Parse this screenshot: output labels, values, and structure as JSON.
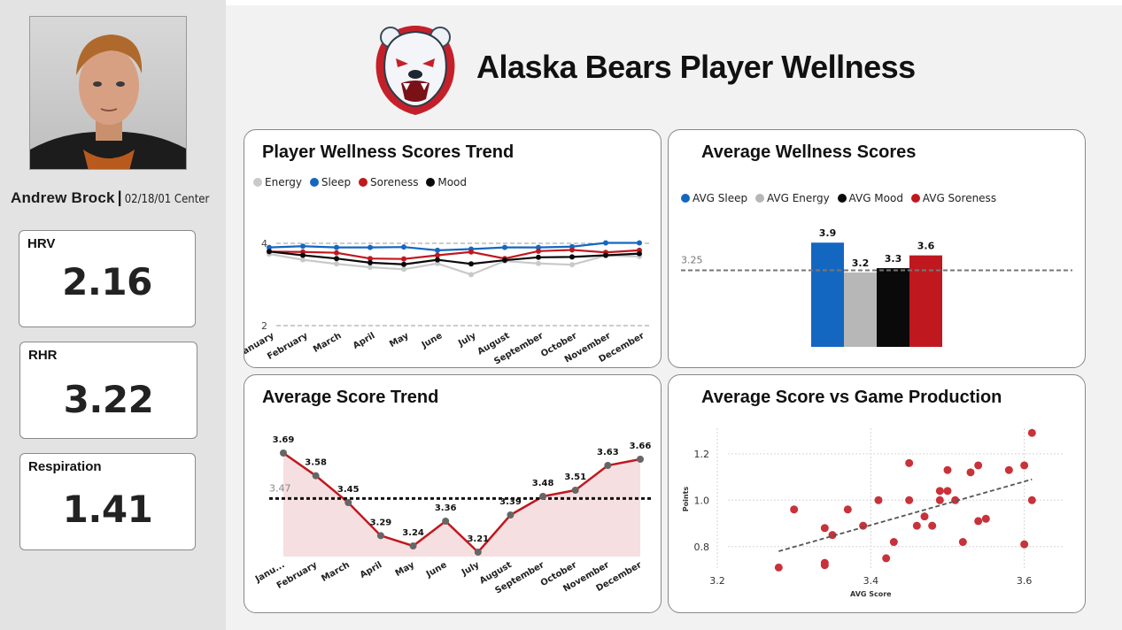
{
  "header": {
    "title": "Alaska Bears Player Wellness",
    "logo": "bear-head-logo"
  },
  "player": {
    "name": "Andrew Brock",
    "separator": "|",
    "details": "02/18/01 Center",
    "photo": "player-photo"
  },
  "stats": [
    {
      "label": "HRV",
      "value": "2.16"
    },
    {
      "label": "RHR",
      "value": "3.22"
    },
    {
      "label": "Respiration",
      "value": "1.41"
    }
  ],
  "colors": {
    "sleep": "#1467c1",
    "energy": "#c9c9c9",
    "soreness": "#c0181f",
    "mood": "#0a0a0a",
    "bar_energy": "#b7b7b7",
    "trend_line": "#c0181f",
    "trend_fill": "#f6dfe1",
    "scatter": "#c8323a"
  },
  "panels": {
    "wellness_trend": {
      "title": "Player Wellness Scores Trend"
    },
    "avg_wellness": {
      "title": "Average Wellness Scores"
    },
    "avg_trend": {
      "title": "Average Score Trend"
    },
    "scatter": {
      "title": "Average Score vs Game Production"
    }
  },
  "chart_data": [
    {
      "id": "wellness_trend",
      "type": "line",
      "title": "Player Wellness Scores Trend",
      "categories": [
        "January",
        "February",
        "March",
        "April",
        "May",
        "June",
        "July",
        "August",
        "September",
        "October",
        "November",
        "December"
      ],
      "ylim": [
        2,
        4
      ],
      "yticks": [
        "2",
        "4"
      ],
      "series": [
        {
          "name": "Energy",
          "color": "#c9c9c9",
          "values": [
            3.74,
            3.6,
            3.5,
            3.42,
            3.37,
            3.51,
            3.24,
            3.57,
            3.51,
            3.48,
            3.7,
            3.68
          ]
        },
        {
          "name": "Sleep",
          "color": "#1467c1",
          "values": [
            3.9,
            3.93,
            3.9,
            3.9,
            3.91,
            3.83,
            3.86,
            3.9,
            3.9,
            3.92,
            4.01,
            4.01
          ]
        },
        {
          "name": "Soreness",
          "color": "#c0181f",
          "values": [
            3.8,
            3.79,
            3.77,
            3.63,
            3.62,
            3.71,
            3.79,
            3.63,
            3.81,
            3.84,
            3.78,
            3.83
          ]
        },
        {
          "name": "Mood",
          "color": "#0a0a0a",
          "values": [
            3.8,
            3.71,
            3.63,
            3.53,
            3.49,
            3.6,
            3.5,
            3.59,
            3.66,
            3.67,
            3.71,
            3.75
          ]
        }
      ]
    },
    {
      "id": "avg_wellness",
      "type": "bar",
      "title": "Average Wellness Scores",
      "categories": [
        "AVG Sleep",
        "AVG Energy",
        "AVG Mood",
        "AVG Soreness"
      ],
      "values": [
        3.9,
        3.2,
        3.3,
        3.6
      ],
      "labels": [
        "3.9",
        "3.2",
        "3.3",
        "3.6"
      ],
      "colors": [
        "#1467c1",
        "#b7b7b7",
        "#0a0a0a",
        "#c0181f"
      ],
      "reference_line": 3.25,
      "reference_label": "3.25",
      "ylim": [
        1.45,
        4.05
      ]
    },
    {
      "id": "avg_trend",
      "type": "area",
      "title": "Average Score Trend",
      "categories": [
        "Janu...",
        "February",
        "March",
        "April",
        "May",
        "June",
        "July",
        "August",
        "September",
        "October",
        "November",
        "December"
      ],
      "values": [
        3.69,
        3.58,
        3.45,
        3.29,
        3.24,
        3.36,
        3.21,
        3.39,
        3.48,
        3.51,
        3.63,
        3.66
      ],
      "labels": [
        "3.69",
        "3.58",
        "3.45",
        "3.29",
        "3.24",
        "3.36",
        "3.21",
        "3.39",
        "3.48",
        "3.51",
        "3.63",
        "3.66"
      ],
      "reference_line": 3.47,
      "reference_label": "3.47",
      "ylim": [
        3.21,
        3.69
      ]
    },
    {
      "id": "scatter",
      "type": "scatter",
      "title": "Average Score vs Game Production",
      "xlabel": "AVG Score",
      "ylabel": "Points",
      "xlim": [
        3.2,
        3.65
      ],
      "ylim": [
        0.7,
        1.31
      ],
      "xticks": [
        "3.2",
        "3.4",
        "3.6"
      ],
      "yticks": [
        "0.8",
        "1.0",
        "1.2"
      ],
      "trend": [
        [
          3.28,
          0.78
        ],
        [
          3.61,
          1.09
        ]
      ],
      "points": [
        [
          3.28,
          0.71
        ],
        [
          3.3,
          0.96
        ],
        [
          3.34,
          0.73
        ],
        [
          3.34,
          0.72
        ],
        [
          3.34,
          0.88
        ],
        [
          3.35,
          0.85
        ],
        [
          3.37,
          0.96
        ],
        [
          3.39,
          0.89
        ],
        [
          3.41,
          1.0
        ],
        [
          3.42,
          0.75
        ],
        [
          3.43,
          0.82
        ],
        [
          3.45,
          1.0
        ],
        [
          3.45,
          1.16
        ],
        [
          3.46,
          0.89
        ],
        [
          3.47,
          0.93
        ],
        [
          3.48,
          0.89
        ],
        [
          3.49,
          1.04
        ],
        [
          3.49,
          1.0
        ],
        [
          3.5,
          1.13
        ],
        [
          3.5,
          1.04
        ],
        [
          3.51,
          1.0
        ],
        [
          3.52,
          0.82
        ],
        [
          3.53,
          1.12
        ],
        [
          3.54,
          0.91
        ],
        [
          3.54,
          1.15
        ],
        [
          3.55,
          0.92
        ],
        [
          3.58,
          1.13
        ],
        [
          3.6,
          1.15
        ],
        [
          3.6,
          0.81
        ],
        [
          3.61,
          1.0
        ],
        [
          3.61,
          1.29
        ]
      ]
    }
  ]
}
